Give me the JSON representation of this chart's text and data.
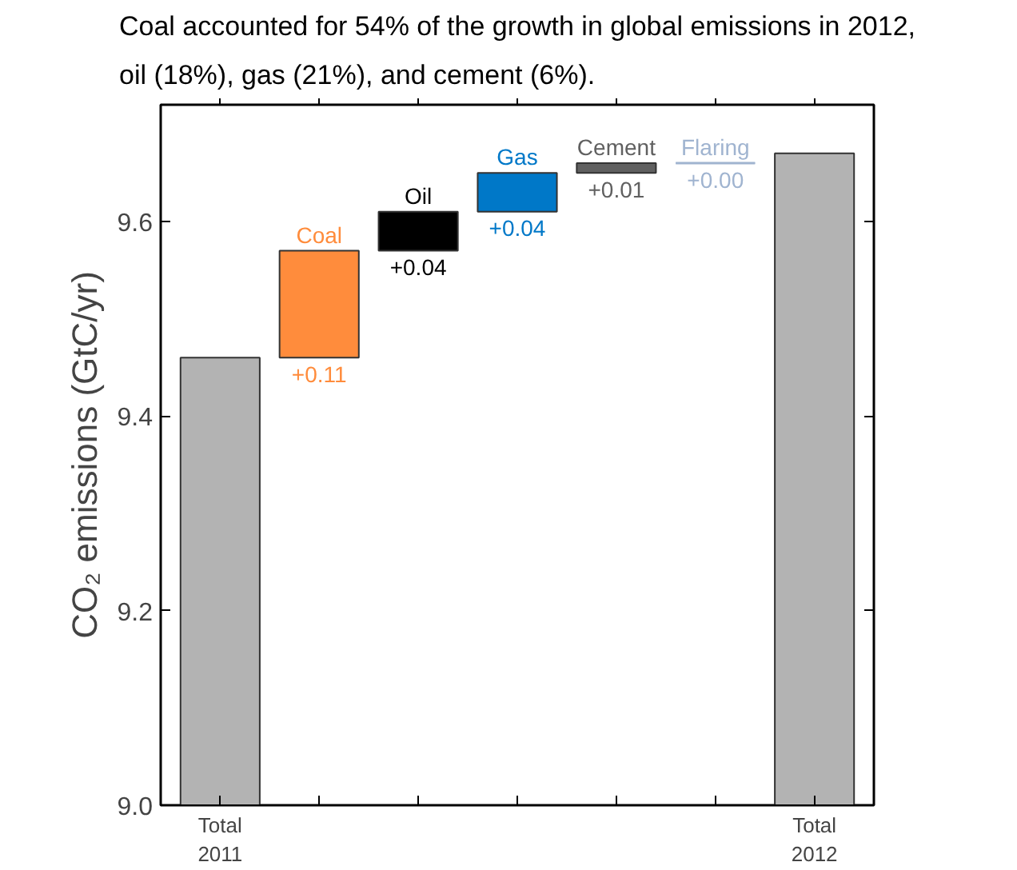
{
  "chart_data": {
    "type": "bar",
    "title": "Coal accounted for 54% of the growth in global emissions in 2012,\noil (18%), gas (21%), and cement (6%).",
    "ylabel": "CO₂ emissions (GtC/yr)",
    "categories": [
      "Total 2011",
      null,
      null,
      null,
      null,
      null,
      "Total 2012"
    ],
    "series": [
      {
        "color": "#b3b3b3",
        "values": [
          9.46,
          null,
          null,
          null,
          null,
          null,
          9.67
        ]
      },
      {
        "name": "Coal",
        "color": "#ff8c3c",
        "values": [
          null,
          0.11,
          null,
          null,
          null,
          null,
          null
        ],
        "base": [
          null,
          9.46,
          null,
          null,
          null,
          null,
          null
        ],
        "value_labels": [
          null,
          "+0.11",
          null,
          null,
          null,
          null,
          null
        ]
      },
      {
        "name": "Oil",
        "color": "#000000",
        "values": [
          null,
          null,
          0.04,
          null,
          null,
          null,
          null
        ],
        "base": [
          null,
          null,
          9.57,
          null,
          null,
          null,
          null
        ],
        "value_labels": [
          null,
          null,
          "+0.04",
          null,
          null,
          null,
          null
        ]
      },
      {
        "name": "Gas",
        "color": "#0078c8",
        "values": [
          null,
          null,
          null,
          0.04,
          null,
          null,
          null
        ],
        "base": [
          null,
          null,
          null,
          9.61,
          null,
          null,
          null
        ],
        "value_labels": [
          null,
          null,
          null,
          "+0.04",
          null,
          null,
          null
        ]
      },
      {
        "name": "Cement",
        "color": "#606060",
        "values": [
          null,
          null,
          null,
          null,
          0.01,
          null,
          null
        ],
        "base": [
          null,
          null,
          null,
          null,
          9.65,
          null,
          null
        ],
        "value_labels": [
          null,
          null,
          null,
          null,
          "+0.01",
          null,
          null
        ]
      },
      {
        "name": "Flaring",
        "color": "#a0b4d0",
        "values": [
          null,
          null,
          null,
          null,
          null,
          0.0,
          null
        ],
        "base": [
          null,
          null,
          null,
          null,
          null,
          9.66,
          null
        ],
        "value_labels": [
          null,
          null,
          null,
          null,
          null,
          "+0.00",
          null
        ]
      }
    ],
    "ylim": [
      9.0,
      9.72
    ],
    "yticks": [
      {
        "value": 9.0,
        "label": "9.0"
      },
      {
        "value": 9.2,
        "label": "9.2"
      },
      {
        "value": 9.4,
        "label": "9.4"
      },
      {
        "value": 9.6,
        "label": "9.6"
      }
    ],
    "grid": false,
    "legend": false
  }
}
